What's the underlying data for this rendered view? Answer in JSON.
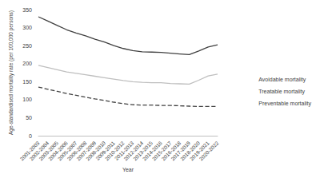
{
  "chart_data": {
    "type": "line",
    "x_label": "Year",
    "y_label": "Age-standardised mortality rate (per 100,000 persons)",
    "categories": [
      "2001-2003",
      "2002-2004",
      "2003-2005",
      "2004-2006",
      "2005-2007",
      "2006-2008",
      "2007-2009",
      "2008-2010",
      "2009-2011",
      "2010-2012",
      "2011-2013",
      "2012-2014",
      "2013-2015",
      "2014-2016",
      "2015-2017",
      "2016-2018",
      "2017-2019",
      "2018-2020",
      "2019-2021",
      "2020-2022"
    ],
    "series": [
      {
        "name": "Avoidable mortality",
        "color": "#404040",
        "line_style": "solid",
        "values": [
          330,
          318,
          306,
          294,
          285,
          277,
          268,
          260,
          250,
          242,
          236,
          233,
          232,
          231,
          229,
          227,
          225,
          235,
          246,
          252
        ]
      },
      {
        "name": "Treatable mortality",
        "color": "#404040",
        "line_style": "dashed",
        "values": [
          135,
          129,
          123,
          117,
          112,
          107,
          102,
          98,
          93,
          89,
          86,
          85,
          85,
          84,
          84,
          83,
          82,
          81,
          81,
          81
        ]
      },
      {
        "name": "Preventable mortality",
        "color": "#bfbfbf",
        "line_style": "solid",
        "values": [
          195,
          189,
          183,
          177,
          173,
          169,
          165,
          161,
          157,
          153,
          150,
          148,
          147,
          147,
          145,
          144,
          143,
          154,
          166,
          171
        ]
      }
    ],
    "ylim": [
      0,
      350
    ],
    "yticks": [
      0,
      50,
      100,
      150,
      200,
      250,
      300,
      350
    ],
    "grid": false,
    "legend": "right"
  }
}
